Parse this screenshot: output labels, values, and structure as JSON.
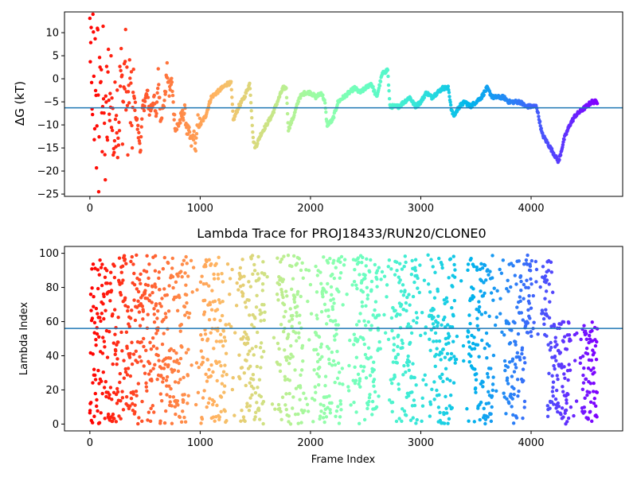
{
  "chart_data": [
    {
      "type": "scatter",
      "title": "",
      "xlabel": "",
      "ylabel": "ΔG (kT)",
      "xlim": [
        -230,
        4830
      ],
      "ylim": [
        -25.5,
        14.5
      ],
      "xticks": [
        0,
        1000,
        2000,
        3000,
        4000
      ],
      "yticks": [
        -25,
        -20,
        -15,
        -10,
        -5,
        0,
        5,
        10
      ],
      "hline": -6.3,
      "hline_color": "#1f77b4",
      "colormap": "rainbow (red at frame 0 → violet at last frame)",
      "grid": false,
      "series": [
        {
          "x": [
            0,
            10,
            20,
            30,
            40,
            50,
            60,
            70,
            80,
            90,
            100,
            110,
            120,
            130,
            140,
            150,
            160,
            170,
            180,
            190,
            200,
            220,
            240,
            260,
            280,
            300,
            320,
            340,
            360,
            380,
            400,
            420,
            440,
            460,
            480,
            500,
            520,
            540,
            560,
            580,
            600,
            620,
            640,
            660,
            680,
            700,
            720,
            740,
            760,
            780,
            800,
            820,
            840,
            860,
            880,
            900,
            920,
            940,
            960,
            980,
            1000,
            1050,
            1100,
            1150,
            1200,
            1250,
            1280,
            1300,
            1350,
            1400,
            1450,
            1480,
            1500,
            1550,
            1600,
            1650,
            1700,
            1750,
            1780,
            1800,
            1850,
            1900,
            1950,
            2000,
            2050,
            2100,
            2130,
            2150,
            2200,
            2250,
            2300,
            2350,
            2400,
            2450,
            2500,
            2550,
            2600,
            2650,
            2700,
            2720,
            2750,
            2800,
            2850,
            2900,
            2950,
            3000,
            3050,
            3100,
            3150,
            3200,
            3250,
            3280,
            3300,
            3350,
            3400,
            3450,
            3500,
            3550,
            3600,
            3650,
            3700,
            3750,
            3800,
            3850,
            3900,
            3950,
            4000,
            4050,
            4100,
            4150,
            4200,
            4250,
            4300,
            4350,
            4400,
            4450,
            4500,
            4550,
            4600
          ],
          "y": [
            10,
            4,
            -10,
            12,
            -18,
            8,
            -14,
            10,
            -24,
            6,
            2,
            -19,
            5,
            -2,
            -22,
            0,
            -12,
            3,
            -16,
            6,
            -8,
            -14,
            -3,
            -10,
            1,
            -6,
            4,
            -8,
            -2,
            -10,
            -4,
            -8,
            -12,
            -15,
            -6,
            -5,
            -3,
            -7,
            -6,
            -4,
            -9,
            1,
            -8,
            -7,
            -4,
            2,
            -3,
            0,
            -7,
            -11,
            -10,
            -9,
            -8,
            -7,
            -11,
            -12,
            -14,
            -12,
            -15,
            -9,
            -10,
            -8,
            -4,
            -3,
            -2,
            -1,
            -1,
            -9,
            -6,
            -4,
            -1,
            -13,
            -15,
            -12,
            -10,
            -8,
            -5,
            -2,
            -2,
            -11,
            -8,
            -4,
            -3,
            -3,
            -4,
            -3,
            -5,
            -10,
            -9,
            -5,
            -4,
            -3,
            -2,
            -3,
            -2,
            -1,
            -4,
            1,
            2,
            -6,
            -6,
            -6,
            -5,
            -4,
            -6,
            -5,
            -3,
            -4,
            -3,
            -2,
            -2,
            -7,
            -8,
            -6,
            -5,
            -6,
            -5,
            -4,
            -2,
            -4,
            -4,
            -4,
            -5,
            -5,
            -5,
            -6,
            -6,
            -6,
            -12,
            -14,
            -16,
            -18,
            -13,
            -10,
            -8,
            -7,
            -6,
            -5,
            -5
          ]
        }
      ]
    },
    {
      "type": "scatter",
      "title": "Lambda Trace for PROJ18433/RUN20/CLONE0",
      "xlabel": "Frame Index",
      "ylabel": "Lambda Index",
      "xlim": [
        -230,
        4830
      ],
      "ylim": [
        -4,
        104
      ],
      "xticks": [
        0,
        1000,
        2000,
        3000,
        4000
      ],
      "yticks": [
        0,
        20,
        40,
        60,
        80,
        100
      ],
      "hline": 56,
      "hline_color": "#1f77b4",
      "colormap": "rainbow (red at frame 0 → violet at last frame)",
      "grid": false,
      "description_of_points": "dense random scatter of ~4600 points, one per frame, lambda index between 0 and 99; after frame ~4200 most points lie between 0 and 60",
      "series": [
        {
          "x_range": [
            0,
            4600
          ],
          "y_range": [
            0,
            99
          ],
          "late_segment": {
            "x_start": 4200,
            "y_range": [
              0,
              60
            ]
          }
        }
      ]
    }
  ]
}
